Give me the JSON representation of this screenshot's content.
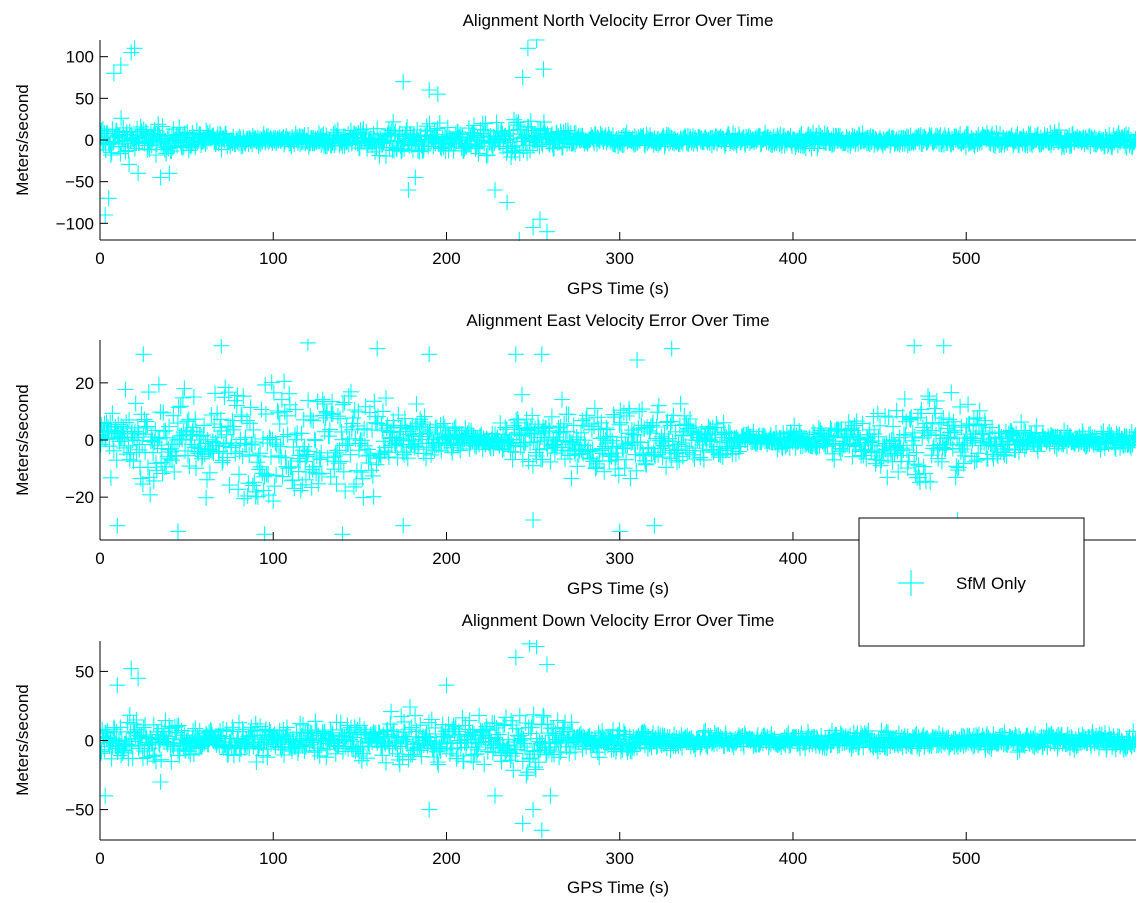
{
  "colors": {
    "series": "#00FFFF",
    "axis": "#000000",
    "background": "#FFFFFF"
  },
  "legend": {
    "label": "SfM Only",
    "marker": "+",
    "placement": "overlapping middle/bottom plot, right side"
  },
  "chart_data": [
    {
      "type": "scatter",
      "title": "Alignment North Velocity Error Over Time",
      "xlabel": "GPS Time (s)",
      "ylabel": "Meters/second",
      "xlim": [
        0,
        598
      ],
      "ylim": [
        -120,
        120
      ],
      "xticks": [
        "0",
        "100",
        "200",
        "300",
        "400",
        "500"
      ],
      "xtick_values": [
        0,
        100,
        200,
        300,
        400,
        500
      ],
      "yticks": [
        "100",
        "50",
        "0",
        "−50",
        "−100"
      ],
      "ytick_values": [
        100,
        50,
        0,
        -50,
        -100
      ],
      "series": [
        {
          "name": "SfM Only",
          "marker": "+",
          "envelope": [
            [
              0,
              35
            ],
            [
              15,
              38
            ],
            [
              25,
              30
            ],
            [
              40,
              25
            ],
            [
              55,
              20
            ],
            [
              70,
              15
            ],
            [
              90,
              9
            ],
            [
              110,
              11
            ],
            [
              130,
              14
            ],
            [
              150,
              20
            ],
            [
              170,
              28
            ],
            [
              190,
              30
            ],
            [
              210,
              28
            ],
            [
              230,
              32
            ],
            [
              245,
              42
            ],
            [
              250,
              38
            ],
            [
              255,
              30
            ],
            [
              262,
              22
            ],
            [
              280,
              15
            ],
            [
              300,
              12
            ],
            [
              350,
              10
            ],
            [
              400,
              14
            ],
            [
              450,
              11
            ],
            [
              500,
              14
            ],
            [
              550,
              15
            ],
            [
              598,
              14
            ]
          ],
          "outliers": [
            [
              3,
              -90
            ],
            [
              5,
              -70
            ],
            [
              8,
              80
            ],
            [
              12,
              90
            ],
            [
              18,
              105
            ],
            [
              20,
              110
            ],
            [
              22,
              -40
            ],
            [
              35,
              -45
            ],
            [
              40,
              -40
            ],
            [
              175,
              70
            ],
            [
              178,
              -60
            ],
            [
              182,
              -45
            ],
            [
              190,
              60
            ],
            [
              195,
              55
            ],
            [
              228,
              -60
            ],
            [
              235,
              -75
            ],
            [
              242,
              -120
            ],
            [
              244,
              75
            ],
            [
              247,
              110
            ],
            [
              250,
              -105
            ],
            [
              252,
              120
            ],
            [
              254,
              -95
            ],
            [
              256,
              85
            ],
            [
              258,
              -110
            ]
          ]
        }
      ]
    },
    {
      "type": "scatter",
      "title": "Alignment East Velocity Error Over Time",
      "xlabel": "GPS Time (s)",
      "ylabel": "Meters/second",
      "xlim": [
        0,
        598
      ],
      "ylim": [
        -35,
        35
      ],
      "xticks": [
        "0",
        "100",
        "200",
        "300",
        "400"
      ],
      "xtick_values": [
        0,
        100,
        200,
        300,
        400
      ],
      "yticks": [
        "20",
        "0",
        "−20"
      ],
      "ytick_values": [
        20,
        0,
        -20
      ],
      "series": [
        {
          "name": "SfM Only",
          "marker": "+",
          "envelope": [
            [
              0,
              14
            ],
            [
              20,
              22
            ],
            [
              40,
              28
            ],
            [
              60,
              30
            ],
            [
              80,
              31
            ],
            [
              100,
              32
            ],
            [
              120,
              32
            ],
            [
              140,
              30
            ],
            [
              160,
              26
            ],
            [
              180,
              18
            ],
            [
              200,
              9
            ],
            [
              220,
              4
            ],
            [
              235,
              8
            ],
            [
              245,
              26
            ],
            [
              255,
              18
            ],
            [
              270,
              16
            ],
            [
              300,
              20
            ],
            [
              320,
              22
            ],
            [
              340,
              18
            ],
            [
              360,
              10
            ],
            [
              385,
              3
            ],
            [
              400,
              6
            ],
            [
              420,
              10
            ],
            [
              440,
              14
            ],
            [
              460,
              22
            ],
            [
              480,
              28
            ],
            [
              495,
              24
            ],
            [
              510,
              14
            ],
            [
              530,
              8
            ],
            [
              560,
              5
            ],
            [
              598,
              5
            ]
          ],
          "outliers": [
            [
              10,
              -30
            ],
            [
              25,
              30
            ],
            [
              45,
              -32
            ],
            [
              70,
              33
            ],
            [
              95,
              -33
            ],
            [
              120,
              34
            ],
            [
              140,
              -33
            ],
            [
              160,
              32
            ],
            [
              175,
              -30
            ],
            [
              190,
              30
            ],
            [
              240,
              30
            ],
            [
              250,
              -28
            ],
            [
              255,
              30
            ],
            [
              300,
              -32
            ],
            [
              310,
              28
            ],
            [
              320,
              -30
            ],
            [
              330,
              32
            ],
            [
              470,
              33
            ],
            [
              480,
              -30
            ],
            [
              487,
              33
            ],
            [
              495,
              -28
            ]
          ]
        }
      ]
    },
    {
      "type": "scatter",
      "title": "Alignment Down Velocity Error Over Time",
      "xlabel": "GPS Time (s)",
      "ylabel": "Meters/second",
      "xlim": [
        0,
        598
      ],
      "ylim": [
        -72,
        72
      ],
      "xticks": [
        "0",
        "100",
        "200",
        "300",
        "400",
        "500"
      ],
      "xtick_values": [
        0,
        100,
        200,
        300,
        400,
        500
      ],
      "yticks": [
        "50",
        "0",
        "−50"
      ],
      "ytick_values": [
        50,
        0,
        -50
      ],
      "series": [
        {
          "name": "SfM Only",
          "marker": "+",
          "envelope": [
            [
              0,
              20
            ],
            [
              20,
              28
            ],
            [
              40,
              24
            ],
            [
              60,
              18
            ],
            [
              80,
              17
            ],
            [
              100,
              17
            ],
            [
              120,
              18
            ],
            [
              140,
              20
            ],
            [
              160,
              22
            ],
            [
              180,
              27
            ],
            [
              200,
              26
            ],
            [
              220,
              28
            ],
            [
              240,
              32
            ],
            [
              250,
              38
            ],
            [
              257,
              30
            ],
            [
              262,
              18
            ],
            [
              280,
              15
            ],
            [
              300,
              15
            ],
            [
              320,
              13
            ],
            [
              350,
              10
            ],
            [
              400,
              9
            ],
            [
              450,
              10
            ],
            [
              500,
              10
            ],
            [
              550,
              10
            ],
            [
              598,
              9
            ]
          ],
          "outliers": [
            [
              3,
              -40
            ],
            [
              10,
              40
            ],
            [
              18,
              52
            ],
            [
              22,
              45
            ],
            [
              35,
              -30
            ],
            [
              190,
              -50
            ],
            [
              200,
              40
            ],
            [
              228,
              -40
            ],
            [
              240,
              60
            ],
            [
              244,
              -60
            ],
            [
              248,
              70
            ],
            [
              250,
              -50
            ],
            [
              252,
              68
            ],
            [
              255,
              -65
            ],
            [
              258,
              55
            ],
            [
              260,
              -40
            ]
          ]
        }
      ]
    }
  ]
}
